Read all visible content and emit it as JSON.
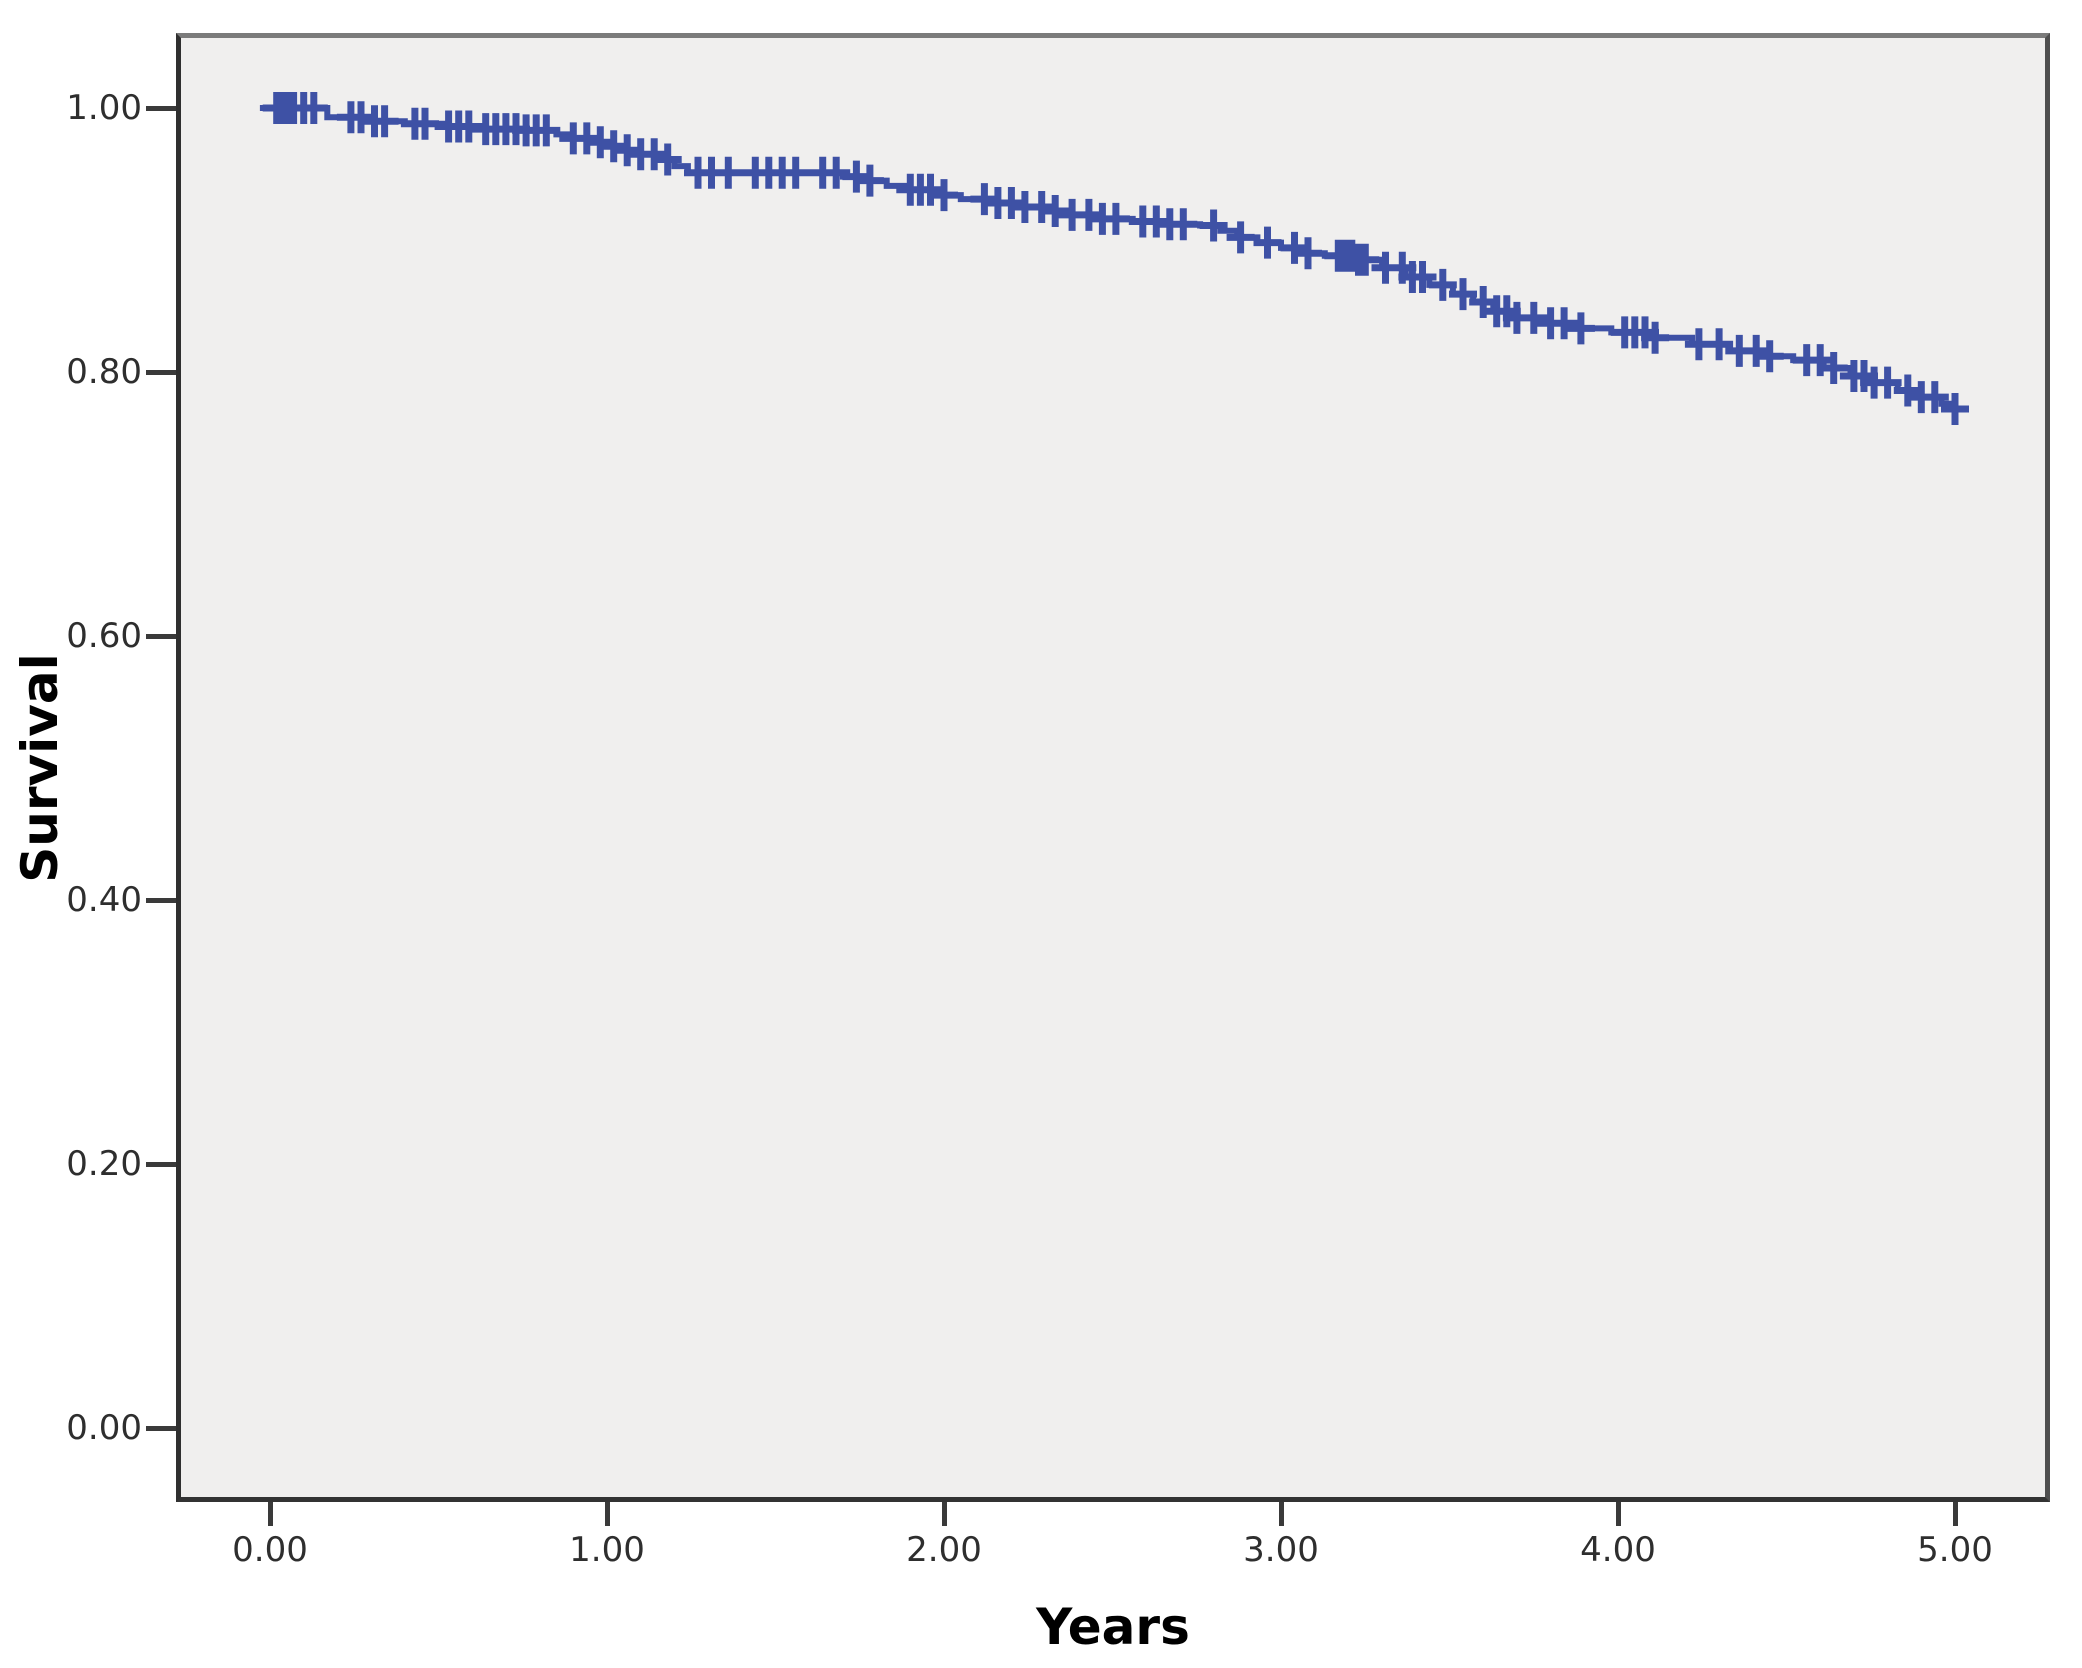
{
  "chart_data": {
    "type": "line",
    "subtype": "kaplan_meier_step_curve",
    "title": "",
    "xlabel": "Years",
    "ylabel": "Survival",
    "xlim": [
      0,
      5
    ],
    "ylim": [
      0.0,
      1.0
    ],
    "grid": false,
    "legend": null,
    "plot_background": "#f0efee",
    "frame_color": "#3a3a3a",
    "x_ticks": [
      {
        "value": 0,
        "label": "0.00"
      },
      {
        "value": 1,
        "label": "1.00"
      },
      {
        "value": 2,
        "label": "2.00"
      },
      {
        "value": 3,
        "label": "3.00"
      },
      {
        "value": 4,
        "label": "4.00"
      },
      {
        "value": 5,
        "label": "5.00"
      }
    ],
    "y_ticks": [
      {
        "value": 0.0,
        "label": "0.00"
      },
      {
        "value": 0.2,
        "label": "0.20"
      },
      {
        "value": 0.4,
        "label": "0.40"
      },
      {
        "value": 0.6,
        "label": "0.60"
      },
      {
        "value": 0.8,
        "label": "0.80"
      },
      {
        "value": 1.0,
        "label": "1.00"
      }
    ],
    "series": [
      {
        "name": "Survival",
        "color": "#3e51a5",
        "line_start_t": -0.03,
        "line_end_t": 5.03,
        "start_value": 1.0,
        "end_value": 0.772,
        "steps": [
          [
            0.17,
            0.993
          ],
          [
            0.28,
            0.99
          ],
          [
            0.4,
            0.988
          ],
          [
            0.52,
            0.986
          ],
          [
            0.62,
            0.984
          ],
          [
            0.75,
            0.983
          ],
          [
            0.85,
            0.98
          ],
          [
            0.9,
            0.977
          ],
          [
            0.95,
            0.974
          ],
          [
            1.0,
            0.971
          ],
          [
            1.05,
            0.968
          ],
          [
            1.1,
            0.965
          ],
          [
            1.15,
            0.961
          ],
          [
            1.2,
            0.956
          ],
          [
            1.24,
            0.951
          ],
          [
            1.7,
            0.948
          ],
          [
            1.76,
            0.945
          ],
          [
            1.83,
            0.941
          ],
          [
            1.9,
            0.938
          ],
          [
            1.97,
            0.934
          ],
          [
            2.05,
            0.931
          ],
          [
            2.13,
            0.928
          ],
          [
            2.22,
            0.925
          ],
          [
            2.3,
            0.922
          ],
          [
            2.38,
            0.919
          ],
          [
            2.46,
            0.916
          ],
          [
            2.56,
            0.914
          ],
          [
            2.66,
            0.912
          ],
          [
            2.76,
            0.911
          ],
          [
            2.82,
            0.907
          ],
          [
            2.87,
            0.902
          ],
          [
            2.93,
            0.898
          ],
          [
            3.0,
            0.894
          ],
          [
            3.07,
            0.89
          ],
          [
            3.13,
            0.888
          ],
          [
            3.22,
            0.885
          ],
          [
            3.3,
            0.879
          ],
          [
            3.37,
            0.872
          ],
          [
            3.44,
            0.866
          ],
          [
            3.51,
            0.859
          ],
          [
            3.57,
            0.853
          ],
          [
            3.63,
            0.846
          ],
          [
            3.69,
            0.841
          ],
          [
            3.76,
            0.837
          ],
          [
            3.86,
            0.833
          ],
          [
            3.98,
            0.83
          ],
          [
            4.1,
            0.826
          ],
          [
            4.22,
            0.821
          ],
          [
            4.33,
            0.816
          ],
          [
            4.43,
            0.812
          ],
          [
            4.52,
            0.809
          ],
          [
            4.61,
            0.803
          ],
          [
            4.69,
            0.797
          ],
          [
            4.76,
            0.792
          ],
          [
            4.83,
            0.786
          ],
          [
            4.9,
            0.781
          ],
          [
            4.96,
            0.776
          ],
          [
            5.0,
            0.772
          ]
        ],
        "censor_marker": "plus",
        "censor_times": [
          0.02,
          0.03,
          0.05,
          0.07,
          0.1,
          0.13,
          0.24,
          0.27,
          0.31,
          0.34,
          0.43,
          0.46,
          0.53,
          0.56,
          0.59,
          0.64,
          0.67,
          0.7,
          0.73,
          0.76,
          0.79,
          0.82,
          0.9,
          0.94,
          0.98,
          1.02,
          1.06,
          1.1,
          1.14,
          1.18,
          1.27,
          1.31,
          1.36,
          1.44,
          1.48,
          1.52,
          1.56,
          1.64,
          1.68,
          1.74,
          1.78,
          1.9,
          1.93,
          1.96,
          2.0,
          2.12,
          2.16,
          2.2,
          2.24,
          2.29,
          2.33,
          2.38,
          2.43,
          2.47,
          2.51,
          2.59,
          2.63,
          2.67,
          2.71,
          2.8,
          2.88,
          2.96,
          3.04,
          3.08,
          3.17,
          3.19,
          3.21,
          3.23,
          3.25,
          3.31,
          3.36,
          3.39,
          3.42,
          3.48,
          3.54,
          3.6,
          3.64,
          3.67,
          3.7,
          3.75,
          3.8,
          3.84,
          3.89,
          4.02,
          4.05,
          4.08,
          4.11,
          4.24,
          4.3,
          4.36,
          4.41,
          4.45,
          4.56,
          4.6,
          4.64,
          4.7,
          4.73,
          4.76,
          4.8,
          4.86,
          4.9,
          4.94,
          5.0
        ]
      }
    ]
  },
  "colors": {
    "page_background": "#ffffff",
    "plot_background": "#f0efee",
    "curve": "#3e51a5",
    "frame": "#3a3a3a",
    "tick_text": "#2e2e2e",
    "title_text": "#000000"
  }
}
